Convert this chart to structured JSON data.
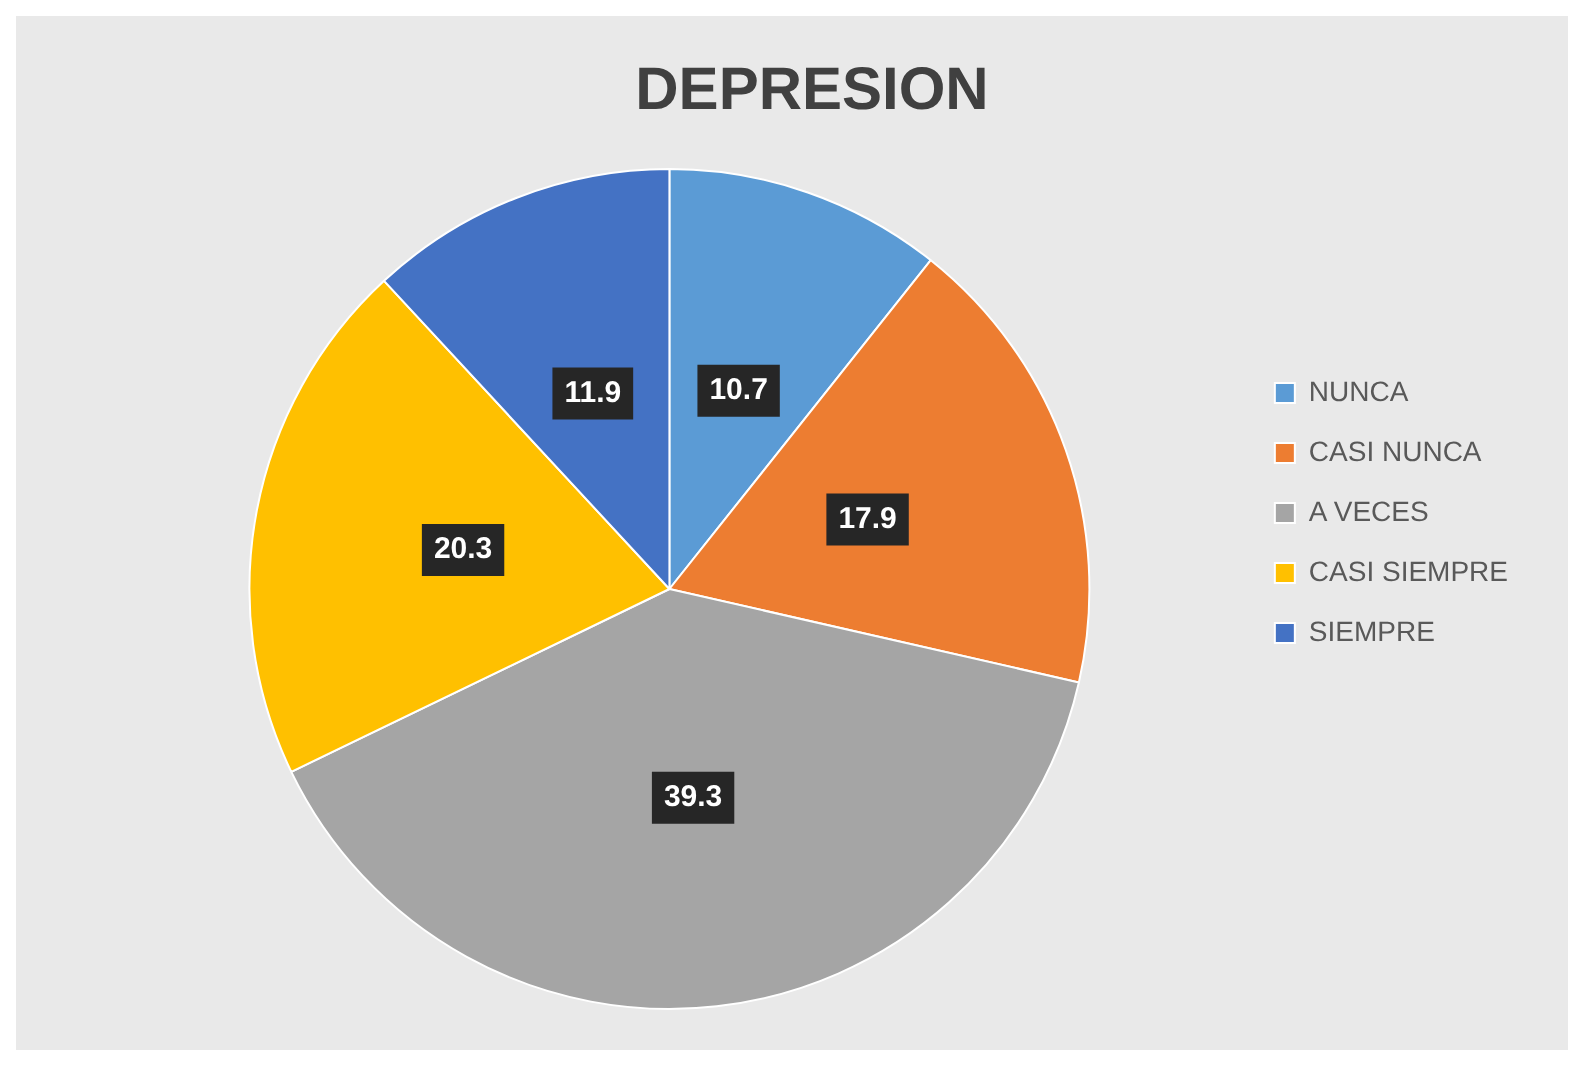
{
  "chart_data": {
    "type": "pie",
    "title": "DEPRESION",
    "categories": [
      "NUNCA",
      "CASI NUNCA",
      "A VECES",
      "CASI SIEMPRE",
      "SIEMPRE"
    ],
    "values": [
      10.7,
      17.9,
      39.3,
      20.3,
      11.9
    ],
    "colors": [
      "#5b9bd5",
      "#ed7d31",
      "#a5a5a5",
      "#ffc000",
      "#4472c4"
    ],
    "data_labels": true,
    "legend": "right"
  }
}
